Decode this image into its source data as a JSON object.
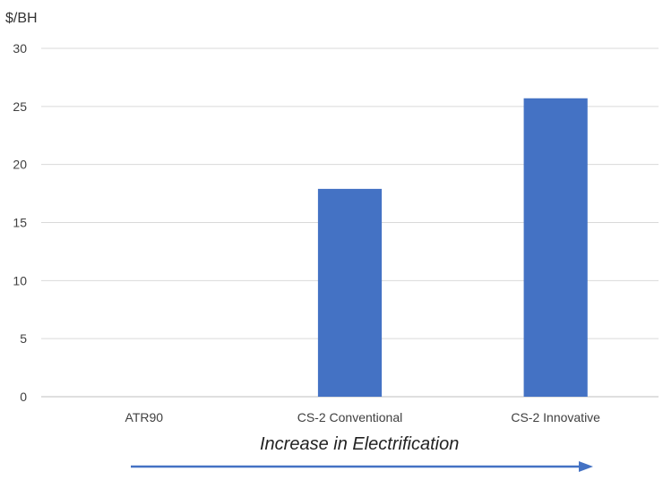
{
  "chart_data": {
    "type": "bar",
    "title": "",
    "xlabel": "",
    "ylabel": "$/BH",
    "categories": [
      "ATR90",
      "CS-2 Conventional",
      "CS-2 Innovative"
    ],
    "values": [
      0,
      17.9,
      25.7
    ],
    "ylim": [
      0,
      30
    ],
    "yticks": [
      0,
      5,
      10,
      15,
      20,
      25,
      30
    ],
    "grid": true,
    "legend": "none",
    "bar_color": "#4472C4",
    "annotation": "Increase in Electrification",
    "arrow_color": "#4472C4"
  }
}
